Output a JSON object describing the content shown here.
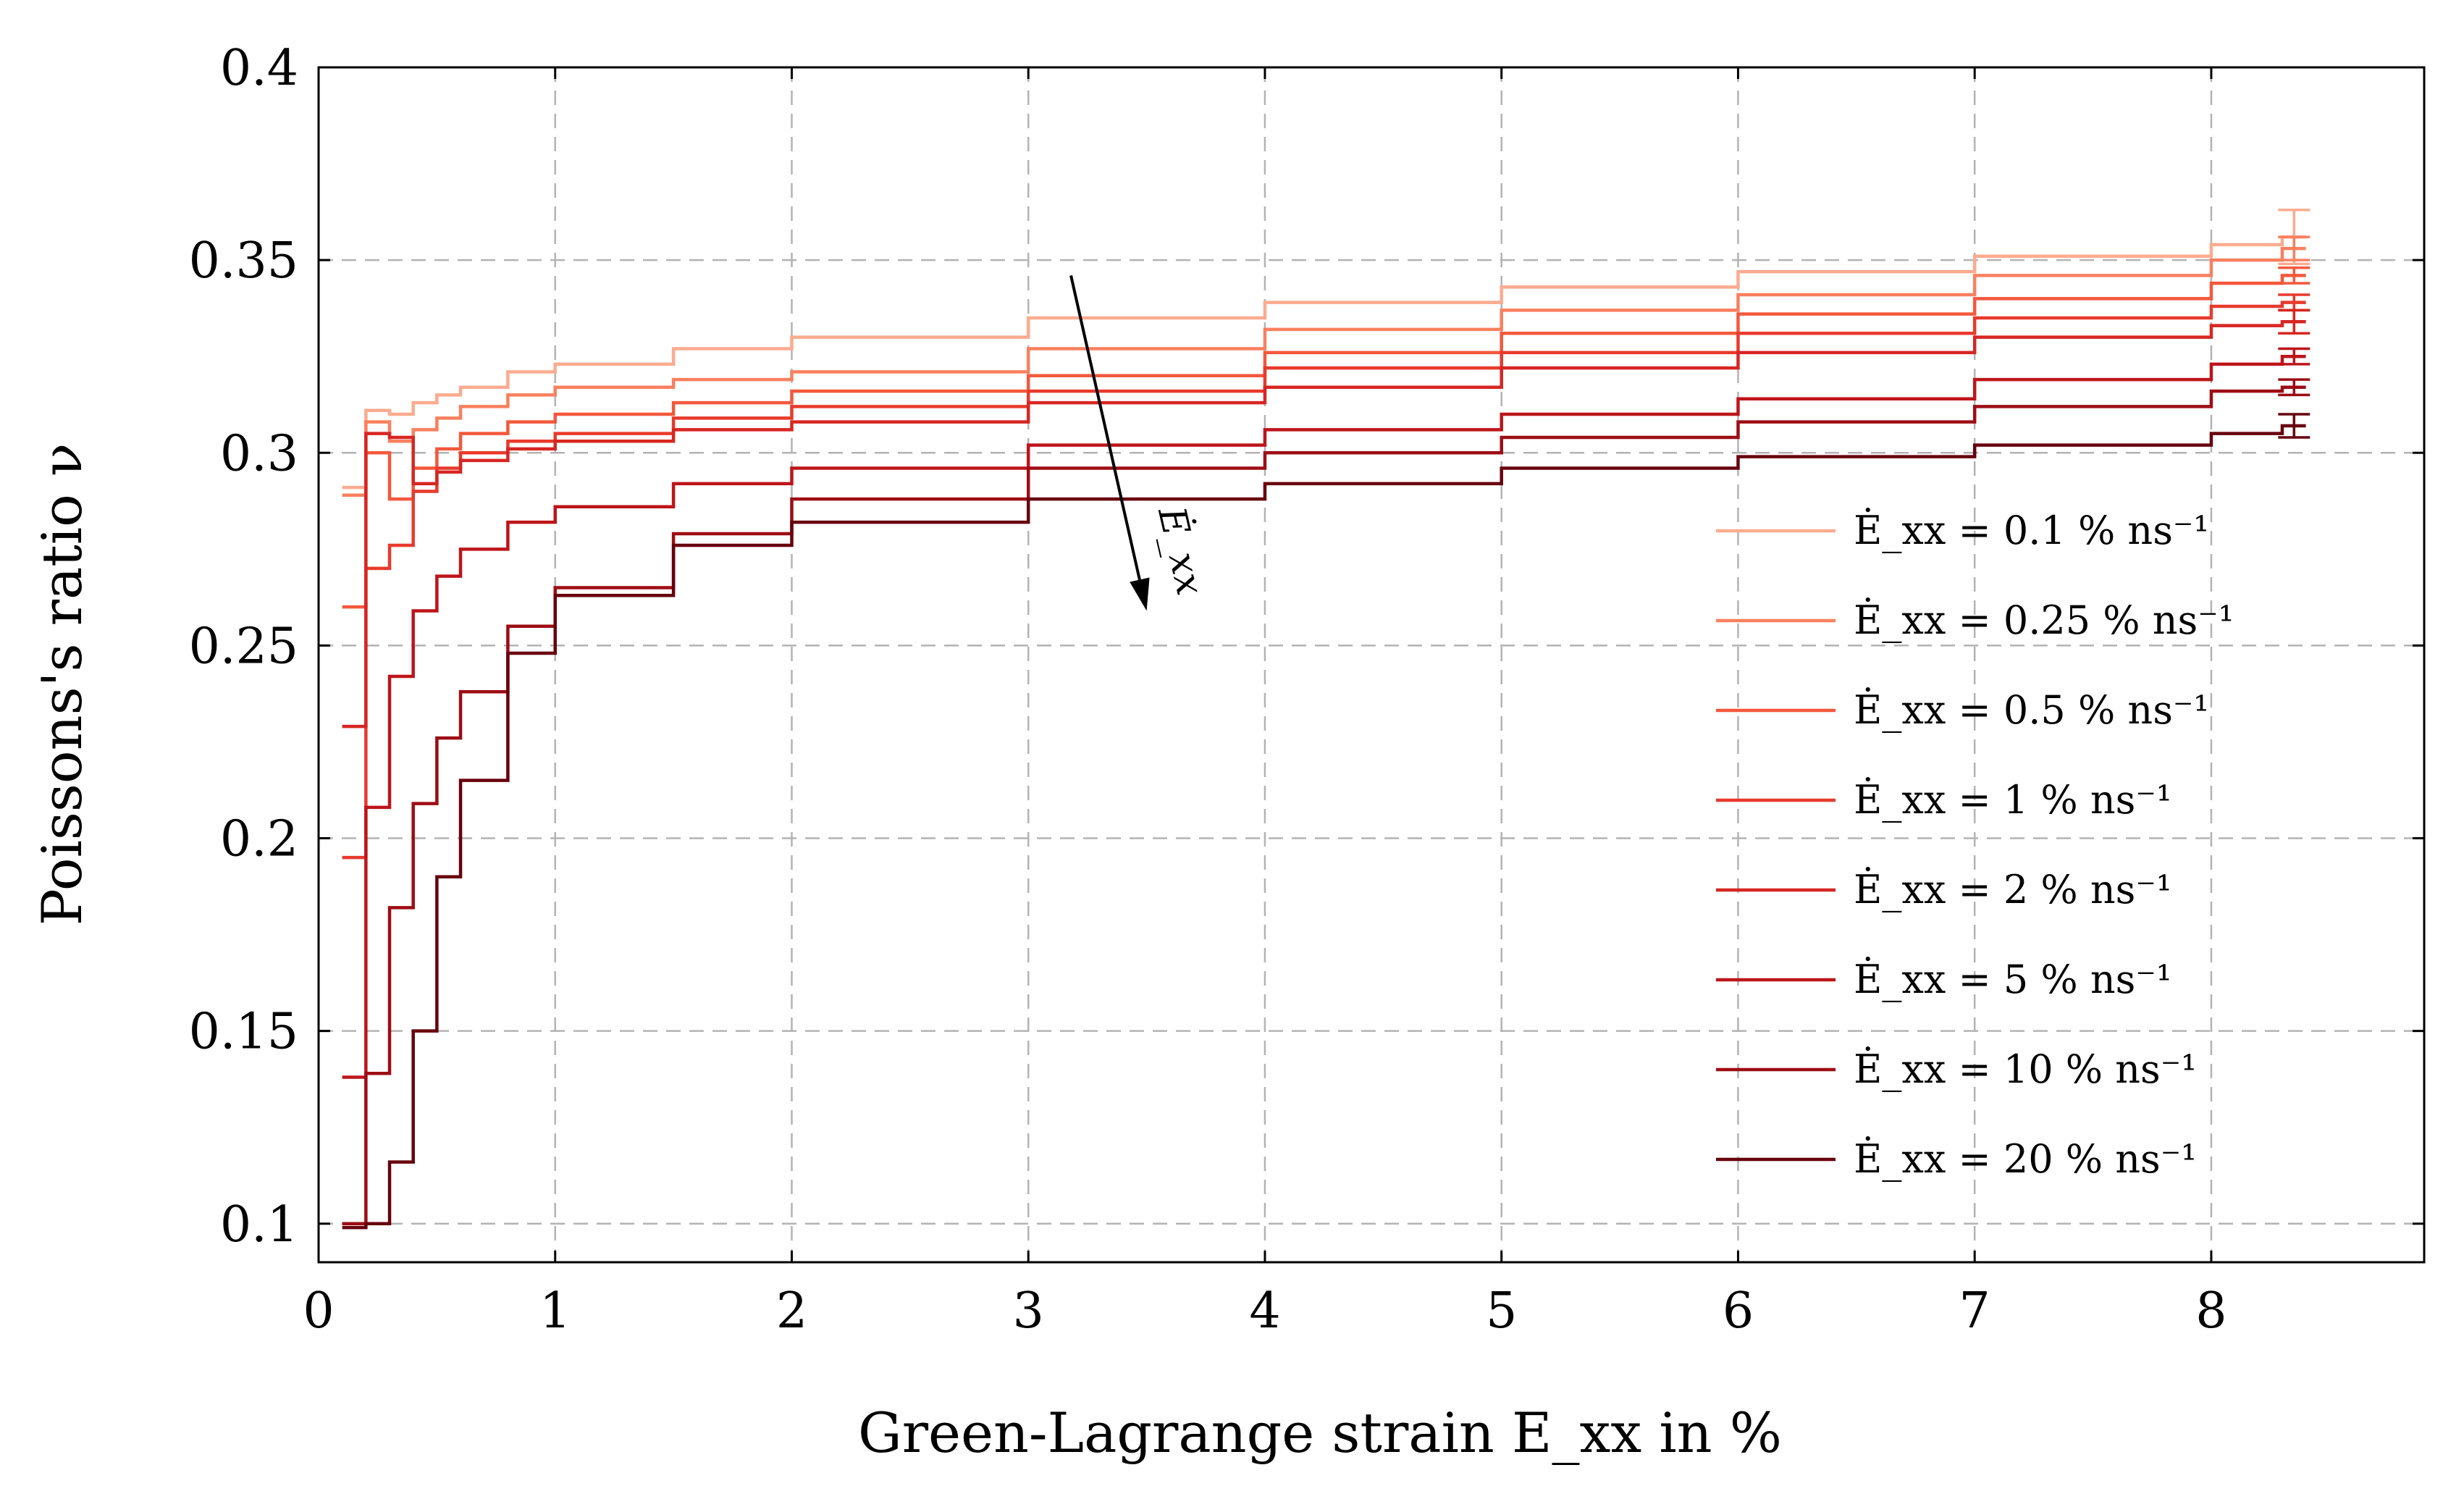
{
  "chart_data": {
    "type": "line",
    "step": true,
    "xlabel": "Green-Lagrange strain E_xx in %",
    "ylabel": "Poissons's ratio ν",
    "xlim": [
      0,
      8.9
    ],
    "ylim": [
      0.09,
      0.4
    ],
    "xticks": [
      0,
      1,
      2,
      3,
      4,
      5,
      6,
      7,
      8
    ],
    "xtick_labels": [
      "0",
      "1",
      "2",
      "3",
      "4",
      "5",
      "6",
      "7",
      "8"
    ],
    "yticks": [
      0.1,
      0.15,
      0.2,
      0.25,
      0.3,
      0.35,
      0.4
    ],
    "ytick_labels": [
      "0.1",
      "0.15",
      "0.2",
      "0.25",
      "0.3",
      "0.35",
      "0.4"
    ],
    "grid": true,
    "legend_position": "right",
    "annotation": "Ė_xx",
    "series": [
      {
        "name": "Ė_xx = 0.1 % ns⁻¹",
        "color": "#fcab8f",
        "x": [
          0.1,
          0.2,
          0.3,
          0.4,
          0.5,
          0.6,
          0.8,
          1.0,
          1.5,
          2.0,
          3.0,
          4.0,
          5.0,
          6.0,
          7.0,
          8.0,
          8.3
        ],
        "y": [
          0.291,
          0.311,
          0.31,
          0.313,
          0.315,
          0.317,
          0.321,
          0.323,
          0.327,
          0.33,
          0.335,
          0.339,
          0.343,
          0.347,
          0.351,
          0.354,
          0.356
        ],
        "err": 0.007
      },
      {
        "name": "Ė_xx = 0.25 % ns⁻¹",
        "color": "#f9805f",
        "x": [
          0.1,
          0.2,
          0.3,
          0.4,
          0.5,
          0.6,
          0.8,
          1.0,
          1.5,
          2.0,
          3.0,
          4.0,
          5.0,
          6.0,
          7.0,
          8.0,
          8.3
        ],
        "y": [
          0.289,
          0.308,
          0.303,
          0.306,
          0.309,
          0.312,
          0.315,
          0.317,
          0.319,
          0.321,
          0.327,
          0.332,
          0.337,
          0.341,
          0.346,
          0.35,
          0.353
        ],
        "err": 0.003
      },
      {
        "name": "Ė_xx = 0.5 % ns⁻¹",
        "color": "#f4583c",
        "x": [
          0.1,
          0.2,
          0.3,
          0.4,
          0.5,
          0.6,
          0.8,
          1.0,
          1.5,
          2.0,
          3.0,
          4.0,
          5.0,
          6.0,
          7.0,
          8.0,
          8.3
        ],
        "y": [
          0.26,
          0.3,
          0.288,
          0.296,
          0.301,
          0.305,
          0.308,
          0.31,
          0.313,
          0.316,
          0.32,
          0.326,
          0.331,
          0.336,
          0.34,
          0.344,
          0.346
        ],
        "err": 0.002
      },
      {
        "name": "Ė_xx = 1 % ns⁻¹",
        "color": "#e83a2c",
        "x": [
          0.1,
          0.2,
          0.3,
          0.4,
          0.5,
          0.6,
          0.8,
          1.0,
          1.5,
          2.0,
          3.0,
          4.0,
          5.0,
          6.0,
          7.0,
          8.0,
          8.3
        ],
        "y": [
          0.195,
          0.27,
          0.276,
          0.29,
          0.296,
          0.3,
          0.303,
          0.305,
          0.309,
          0.312,
          0.316,
          0.322,
          0.326,
          0.331,
          0.335,
          0.338,
          0.339
        ],
        "err": 0.002
      },
      {
        "name": "Ė_xx = 2 % ns⁻¹",
        "color": "#d72622",
        "x": [
          0.1,
          0.2,
          0.3,
          0.4,
          0.5,
          0.6,
          0.8,
          1.0,
          1.5,
          2.0,
          3.0,
          4.0,
          5.0,
          6.0,
          7.0,
          8.0,
          8.3
        ],
        "y": [
          0.229,
          0.305,
          0.304,
          0.292,
          0.295,
          0.298,
          0.301,
          0.303,
          0.306,
          0.308,
          0.313,
          0.317,
          0.322,
          0.326,
          0.33,
          0.333,
          0.334
        ],
        "err": 0.003
      },
      {
        "name": "Ė_xx = 5 % ns⁻¹",
        "color": "#bd151a",
        "x": [
          0.1,
          0.2,
          0.3,
          0.4,
          0.5,
          0.6,
          0.8,
          1.0,
          1.5,
          2.0,
          3.0,
          4.0,
          5.0,
          6.0,
          7.0,
          8.0,
          8.3
        ],
        "y": [
          0.138,
          0.208,
          0.242,
          0.259,
          0.268,
          0.275,
          0.282,
          0.286,
          0.292,
          0.296,
          0.302,
          0.306,
          0.31,
          0.314,
          0.319,
          0.323,
          0.325
        ],
        "err": 0.002
      },
      {
        "name": "Ė_xx = 10 % ns⁻¹",
        "color": "#9d0d14",
        "x": [
          0.1,
          0.2,
          0.3,
          0.4,
          0.5,
          0.6,
          0.8,
          1.0,
          1.5,
          2.0,
          3.0,
          4.0,
          5.0,
          6.0,
          7.0,
          8.0,
          8.3
        ],
        "y": [
          0.1,
          0.139,
          0.182,
          0.209,
          0.226,
          0.238,
          0.255,
          0.265,
          0.279,
          0.288,
          0.296,
          0.3,
          0.304,
          0.308,
          0.312,
          0.316,
          0.317
        ],
        "err": 0.002
      },
      {
        "name": "Ė_xx = 20 % ns⁻¹",
        "color": "#67000d",
        "x": [
          0.1,
          0.2,
          0.3,
          0.4,
          0.5,
          0.6,
          0.8,
          1.0,
          1.5,
          2.0,
          3.0,
          4.0,
          5.0,
          6.0,
          7.0,
          8.0,
          8.3
        ],
        "y": [
          0.099,
          0.1,
          0.116,
          0.15,
          0.19,
          0.215,
          0.248,
          0.263,
          0.276,
          0.282,
          0.288,
          0.292,
          0.296,
          0.299,
          0.302,
          0.305,
          0.307
        ],
        "err": 0.003
      }
    ]
  }
}
